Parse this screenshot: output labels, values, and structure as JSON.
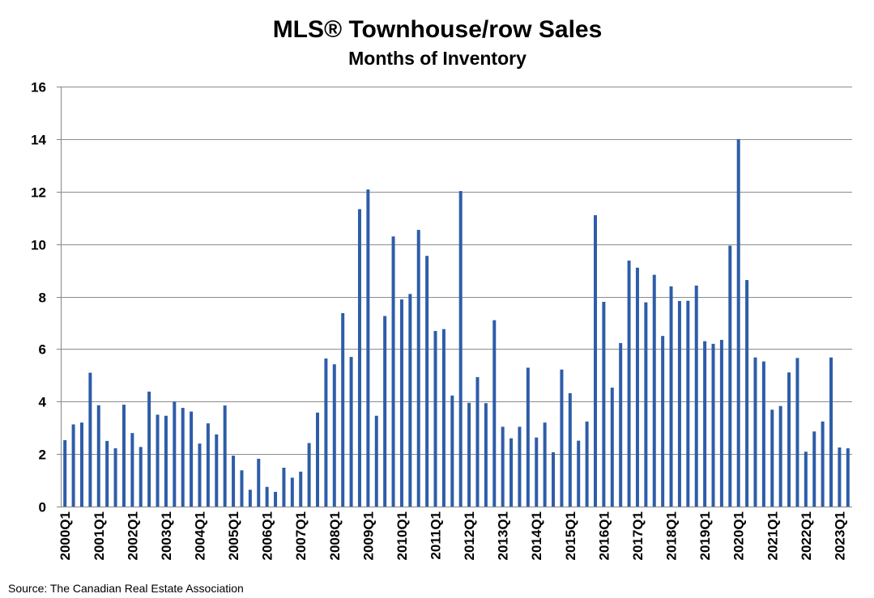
{
  "chart_data": {
    "type": "bar",
    "title": "MLS® Townhouse/row Sales",
    "subtitle": "Months of Inventory",
    "x_tick_labels": [
      "2000Q1",
      "2001Q1",
      "2002Q1",
      "2003Q1",
      "2004Q1",
      "2005Q1",
      "2006Q1",
      "2007Q1",
      "2008Q1",
      "2009Q1",
      "2010Q1",
      "2011Q1",
      "2012Q1",
      "2013Q1",
      "2014Q1",
      "2015Q1",
      "2016Q1",
      "2017Q1",
      "2018Q1",
      "2019Q1",
      "2020Q1",
      "2021Q1",
      "2022Q1",
      "2023Q1"
    ],
    "values": [
      2.53,
      3.13,
      3.2,
      5.1,
      3.86,
      2.5,
      2.22,
      3.88,
      2.8,
      2.27,
      4.38,
      3.5,
      3.46,
      4.0,
      3.76,
      3.62,
      2.4,
      3.17,
      2.75,
      3.85,
      1.94,
      1.38,
      0.64,
      1.82,
      0.75,
      0.56,
      1.48,
      1.1,
      1.33,
      2.42,
      3.58,
      5.64,
      5.42,
      7.37,
      5.7,
      11.33,
      12.08,
      3.46,
      7.26,
      10.29,
      7.89,
      8.1,
      10.54,
      9.55,
      6.69,
      6.76,
      4.23,
      12.02,
      3.95,
      4.93,
      3.94,
      7.1,
      3.04,
      2.6,
      3.04,
      5.29,
      2.63,
      3.2,
      2.07,
      5.22,
      4.32,
      2.51,
      3.24,
      11.1,
      7.8,
      4.53,
      6.23,
      9.37,
      9.1,
      7.78,
      8.83,
      6.5,
      8.39,
      7.83,
      7.84,
      8.42,
      6.3,
      6.2,
      6.35,
      9.94,
      14.0,
      8.63,
      5.68,
      5.53,
      3.69,
      3.83,
      5.11,
      5.66,
      2.09,
      2.86,
      3.24,
      5.68,
      2.25,
      2.22
    ],
    "ylim": [
      0,
      16
    ],
    "y_ticks": [
      0,
      2,
      4,
      6,
      8,
      10,
      12,
      14,
      16
    ],
    "grid": true,
    "bar_color": "#2E5DA8"
  },
  "source": "Source: The Canadian Real Estate Association"
}
